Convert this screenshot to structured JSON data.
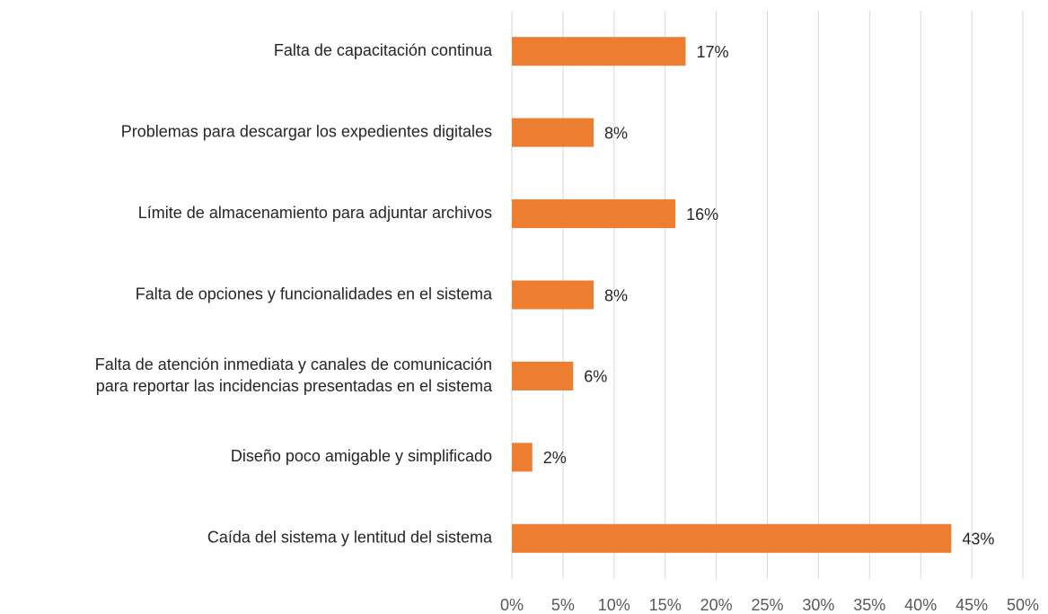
{
  "chart_data": {
    "type": "barh",
    "categories": [
      "Falta de capacitación continua",
      "Problemas para descargar los expedientes digitales",
      "Límite de almacenamiento para adjuntar archivos",
      "Falta de opciones y funcionalidades en el sistema",
      "Falta de atención inmediata y canales de comunicación\npara reportar las incidencias presentadas en el sistema",
      "Diseño poco amigable y simplificado",
      "Caída del sistema y lentitud del sistema"
    ],
    "values": [
      17,
      8,
      16,
      8,
      6,
      2,
      43
    ],
    "value_labels": [
      "17%",
      "8%",
      "16%",
      "8%",
      "6%",
      "2%",
      "43%"
    ],
    "color": "#ed7d31",
    "xlim": [
      0,
      50
    ],
    "xticks": [
      {
        "value": 0,
        "label": "0%"
      },
      {
        "value": 5,
        "label": "5%"
      },
      {
        "value": 10,
        "label": "10%"
      },
      {
        "value": 15,
        "label": "15%"
      },
      {
        "value": 20,
        "label": "20%"
      },
      {
        "value": 25,
        "label": "25%"
      },
      {
        "value": 30,
        "label": "30%"
      },
      {
        "value": 35,
        "label": "35%"
      },
      {
        "value": 40,
        "label": "40%"
      },
      {
        "value": 45,
        "label": "45%"
      },
      {
        "value": 50,
        "label": "50%"
      }
    ],
    "grid": true
  }
}
